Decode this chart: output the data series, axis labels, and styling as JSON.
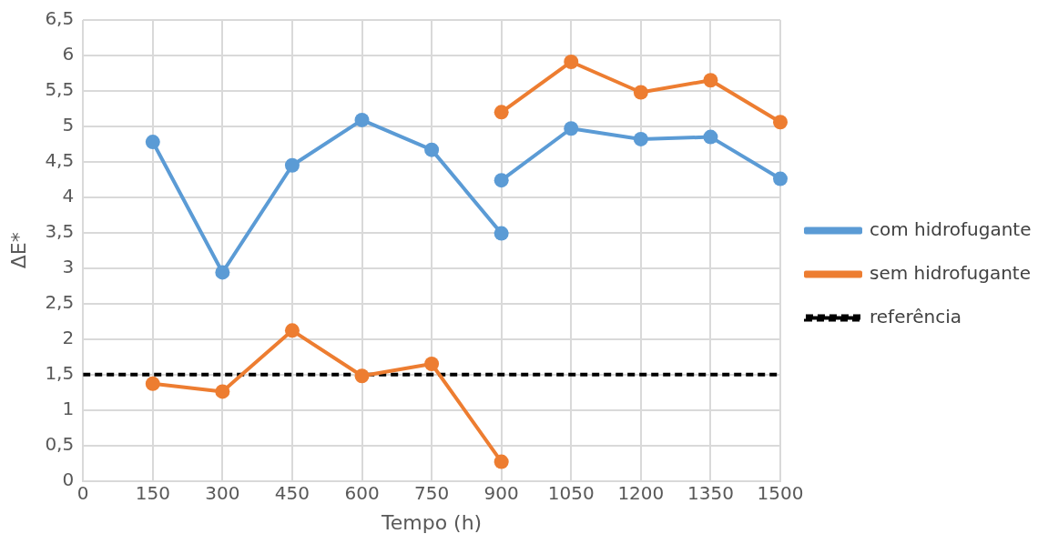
{
  "chart_data": {
    "type": "line",
    "xlabel": "Tempo (h)",
    "ylabel": "ΔE*",
    "xlim": [
      0,
      1500
    ],
    "xticks": [
      0,
      150,
      300,
      450,
      600,
      750,
      900,
      1050,
      1200,
      1350,
      1500
    ],
    "ylim": [
      0,
      6.5
    ],
    "yticks": [
      0,
      {
        "value": 0.5,
        "label": "0,5"
      },
      1,
      {
        "value": 1.5,
        "label": "1,5"
      },
      2,
      {
        "value": 2.5,
        "label": "2,5"
      },
      3,
      {
        "value": 3.5,
        "label": "3,5"
      },
      4,
      {
        "value": 4.5,
        "label": "4,5"
      },
      5,
      {
        "value": 5.5,
        "label": "5,5"
      },
      6,
      {
        "value": 6.5,
        "label": "6,5"
      }
    ],
    "series": [
      {
        "name": "com hidrofugante",
        "color": "#5b9bd5",
        "x": [
          150,
          300,
          450,
          600,
          750,
          900,
          null,
          900,
          1050,
          1200,
          1350,
          1500
        ],
        "values": [
          4.78,
          2.94,
          4.45,
          5.09,
          4.67,
          3.49,
          null,
          4.24,
          4.97,
          4.82,
          4.85,
          4.26
        ]
      },
      {
        "name": "sem hidrofugante",
        "color": "#ed7d31",
        "x": [
          150,
          300,
          450,
          600,
          750,
          900,
          null,
          900,
          1050,
          1200,
          1350,
          1500
        ],
        "values": [
          1.37,
          1.26,
          2.12,
          1.48,
          1.65,
          0.27,
          null,
          5.2,
          5.91,
          5.48,
          5.65,
          5.06
        ]
      }
    ],
    "ref_lines": [
      {
        "axis": "y",
        "value": 1.5,
        "label": "referência",
        "color": "#000000",
        "line_style": "dashed"
      }
    ],
    "grid": true,
    "legend": "right",
    "marker": "circle",
    "line_style": "solid"
  }
}
